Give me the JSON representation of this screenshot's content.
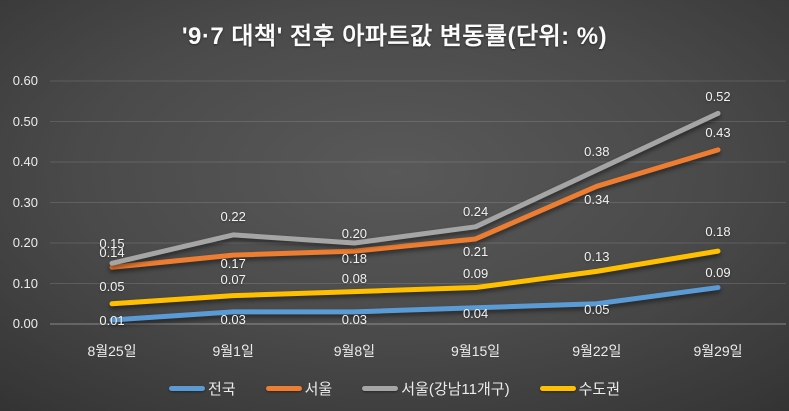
{
  "chart_data": {
    "type": "line",
    "title": "'9·7 대책' 전후 아파트값 변동률(단위: %)",
    "categories": [
      "8월25일",
      "9월1일",
      "9월8일",
      "9월15일",
      "9월22일",
      "9월29일"
    ],
    "series": [
      {
        "name": "전국",
        "color": "#5B9BD5",
        "values": [
          0.01,
          0.03,
          0.03,
          0.04,
          0.05,
          0.09
        ],
        "label_dy": [
          1,
          8,
          8,
          6,
          6,
          -15
        ]
      },
      {
        "name": "서울",
        "color": "#ED7D31",
        "values": [
          0.14,
          0.17,
          0.18,
          0.21,
          0.34,
          0.43
        ],
        "label_dy": [
          -14,
          9,
          8,
          13,
          14,
          -17
        ]
      },
      {
        "name": "서울(강남11개구)",
        "color": "#A5A5A5",
        "values": [
          0.15,
          0.22,
          0.2,
          0.24,
          0.38,
          0.52
        ],
        "label_dy": [
          -19,
          -18,
          -9,
          -15,
          -18,
          -16
        ]
      },
      {
        "name": "수도권",
        "color": "#FFC000",
        "values": [
          0.05,
          0.07,
          0.08,
          0.09,
          0.13,
          0.18
        ],
        "label_dy": [
          -17,
          -16,
          -13,
          -14,
          -14,
          -19
        ]
      }
    ],
    "xlabel": "",
    "ylabel": "",
    "ylim": [
      0,
      0.6
    ],
    "y_tick_step": 0.1,
    "y_tick_labels": [
      "0.00",
      "0.10",
      "0.20",
      "0.30",
      "0.40",
      "0.50",
      "0.60"
    ],
    "value_label_format": "two-decimals",
    "grid": true,
    "legend_position": "bottom",
    "background": "dark-gray-radial-gradient",
    "colors": {
      "grid_line": "rgba(255,255,255,0.13)",
      "axis_line": "rgba(255,255,255,0.38)",
      "text": "#ececec"
    }
  }
}
